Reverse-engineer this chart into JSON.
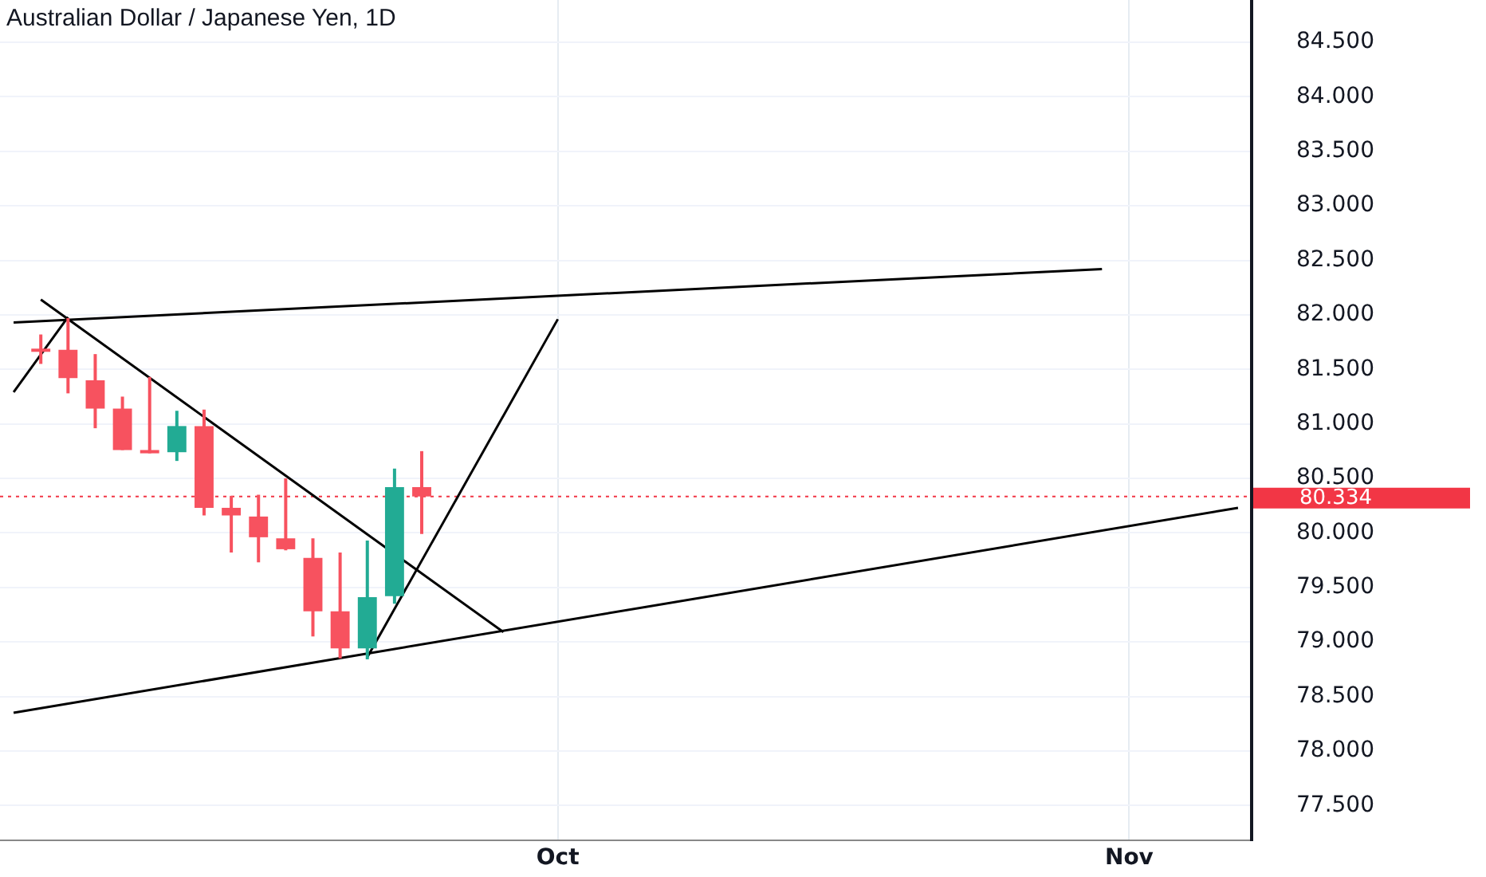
{
  "chart_data": {
    "type": "candlestick",
    "title": "Australian Dollar / Japanese Yen, 1D",
    "categories": [
      null,
      null,
      null,
      null,
      null,
      null,
      null,
      null,
      null,
      null,
      null,
      null,
      null,
      null,
      null,
      null,
      null,
      null,
      null,
      null,
      "Oct",
      null,
      null,
      null,
      null,
      null,
      null,
      null,
      null,
      null,
      null,
      null,
      null,
      null,
      null,
      null,
      null,
      null,
      null,
      null,
      null,
      "Nov",
      null,
      null,
      null,
      null
    ],
    "ylim": [
      77.18,
      84.888
    ],
    "yticks": [
      {
        "value": 77.5,
        "label": "77.500"
      },
      {
        "value": 78,
        "label": "78.000"
      },
      {
        "value": 78.5,
        "label": "78.500"
      },
      {
        "value": 79,
        "label": "79.000"
      },
      {
        "value": 79.5,
        "label": "79.500"
      },
      {
        "value": 80,
        "label": "80.000"
      },
      {
        "value": 80.5,
        "label": "80.500"
      },
      {
        "value": 81,
        "label": "81.000"
      },
      {
        "value": 81.5,
        "label": "81.500"
      },
      {
        "value": 82,
        "label": "82.000"
      },
      {
        "value": 82.5,
        "label": "82.500"
      },
      {
        "value": 83,
        "label": "83.000"
      },
      {
        "value": 83.5,
        "label": "83.500"
      },
      {
        "value": 84,
        "label": "84.000"
      },
      {
        "value": 84.5,
        "label": "84.500"
      }
    ],
    "grid": true,
    "ref_lines": [
      {
        "axis": "y",
        "value": 80.334,
        "label": "80.334",
        "color": "#f23645",
        "line_style": "dotted"
      }
    ],
    "series": [
      {
        "ohlc": [
          null,
          [
            81.69,
            81.82,
            81.55,
            81.68
          ],
          [
            81.68,
            81.97,
            81.28,
            81.42
          ],
          [
            81.4,
            81.64,
            80.96,
            81.14
          ],
          [
            81.14,
            81.25,
            80.76,
            80.76
          ],
          [
            80.76,
            81.43,
            80.73,
            80.73
          ],
          [
            80.74,
            81.12,
            80.66,
            80.98
          ],
          [
            80.98,
            81.13,
            80.16,
            80.23
          ],
          [
            80.23,
            80.34,
            79.82,
            80.16
          ],
          [
            80.15,
            80.35,
            79.73,
            79.96
          ],
          [
            79.95,
            80.5,
            79.84,
            79.85
          ],
          [
            79.77,
            79.95,
            79.05,
            79.28
          ],
          [
            79.28,
            79.82,
            78.85,
            78.94
          ],
          [
            78.94,
            79.93,
            78.84,
            79.41
          ],
          [
            79.42,
            80.59,
            79.35,
            80.42
          ],
          [
            80.42,
            80.75,
            79.99,
            80.334
          ],
          null,
          null,
          null,
          null,
          null,
          null,
          null,
          null,
          null,
          null,
          null,
          null,
          null,
          null,
          null,
          null,
          null,
          null,
          null,
          null,
          null,
          null,
          null,
          null,
          null,
          null,
          null,
          null,
          null,
          null
        ],
        "colors": [
          null,
          "#f7525f",
          "#f7525f",
          "#f7525f",
          "#f7525f",
          "#f7525f",
          "#22ab94",
          "#f7525f",
          "#f7525f",
          "#f7525f",
          "#f7525f",
          "#f7525f",
          "#f7525f",
          "#22ab94",
          "#22ab94",
          "#f7525f",
          null,
          null,
          null,
          null,
          null,
          null,
          null,
          null,
          null,
          null,
          null,
          null,
          null,
          null,
          null,
          null,
          null,
          null,
          null,
          null,
          null,
          null,
          null,
          null,
          null,
          null,
          null,
          null,
          null,
          null
        ]
      },
      {
        "type": "line",
        "color": "#000000",
        "values": [
          81.93,
          null,
          null,
          null,
          null,
          null,
          null,
          null,
          null,
          null,
          null,
          null,
          null,
          null,
          null,
          null,
          null,
          null,
          null,
          null,
          null,
          null,
          null,
          null,
          null,
          null,
          null,
          null,
          null,
          null,
          null,
          null,
          null,
          null,
          null,
          null,
          null,
          null,
          null,
          null,
          82.42,
          null,
          null,
          null,
          null,
          null
        ]
      },
      {
        "type": "line",
        "color": "#000000",
        "values": [
          78.35,
          null,
          null,
          null,
          null,
          null,
          null,
          null,
          null,
          null,
          null,
          null,
          null,
          null,
          null,
          null,
          null,
          null,
          null,
          null,
          null,
          null,
          null,
          null,
          null,
          null,
          null,
          null,
          null,
          null,
          null,
          null,
          null,
          null,
          null,
          null,
          null,
          null,
          null,
          null,
          null,
          null,
          null,
          null,
          null,
          80.23
        ]
      },
      {
        "type": "line",
        "color": "#000000",
        "values": [
          null,
          82.14,
          null,
          null,
          null,
          null,
          null,
          null,
          null,
          null,
          null,
          null,
          null,
          null,
          null,
          null,
          null,
          null,
          79.09,
          null,
          null,
          null,
          null,
          null,
          null,
          null,
          null,
          null,
          null,
          null,
          null,
          null,
          null,
          null,
          null,
          null,
          null,
          null,
          null,
          null,
          null,
          null,
          null,
          null,
          null,
          null
        ]
      },
      {
        "type": "line",
        "color": "#000000",
        "values": [
          81.29,
          null,
          81.98,
          null,
          null,
          null,
          null,
          null,
          null,
          null,
          null,
          null,
          null,
          null,
          null,
          null,
          null,
          null,
          null,
          null,
          null,
          null,
          null,
          null,
          null,
          null,
          null,
          null,
          null,
          null,
          null,
          null,
          null,
          null,
          null,
          null,
          null,
          null,
          null,
          null,
          null,
          null,
          null,
          null,
          null,
          null
        ]
      },
      {
        "type": "line",
        "color": "#000000",
        "values": [
          null,
          null,
          null,
          null,
          null,
          null,
          null,
          null,
          null,
          null,
          null,
          null,
          null,
          78.86,
          null,
          null,
          null,
          null,
          null,
          null,
          81.96,
          null,
          null,
          null,
          null,
          null,
          null,
          null,
          null,
          null,
          null,
          null,
          null,
          null,
          null,
          null,
          null,
          null,
          null,
          null,
          null,
          null,
          null,
          null,
          null,
          null
        ]
      }
    ]
  }
}
